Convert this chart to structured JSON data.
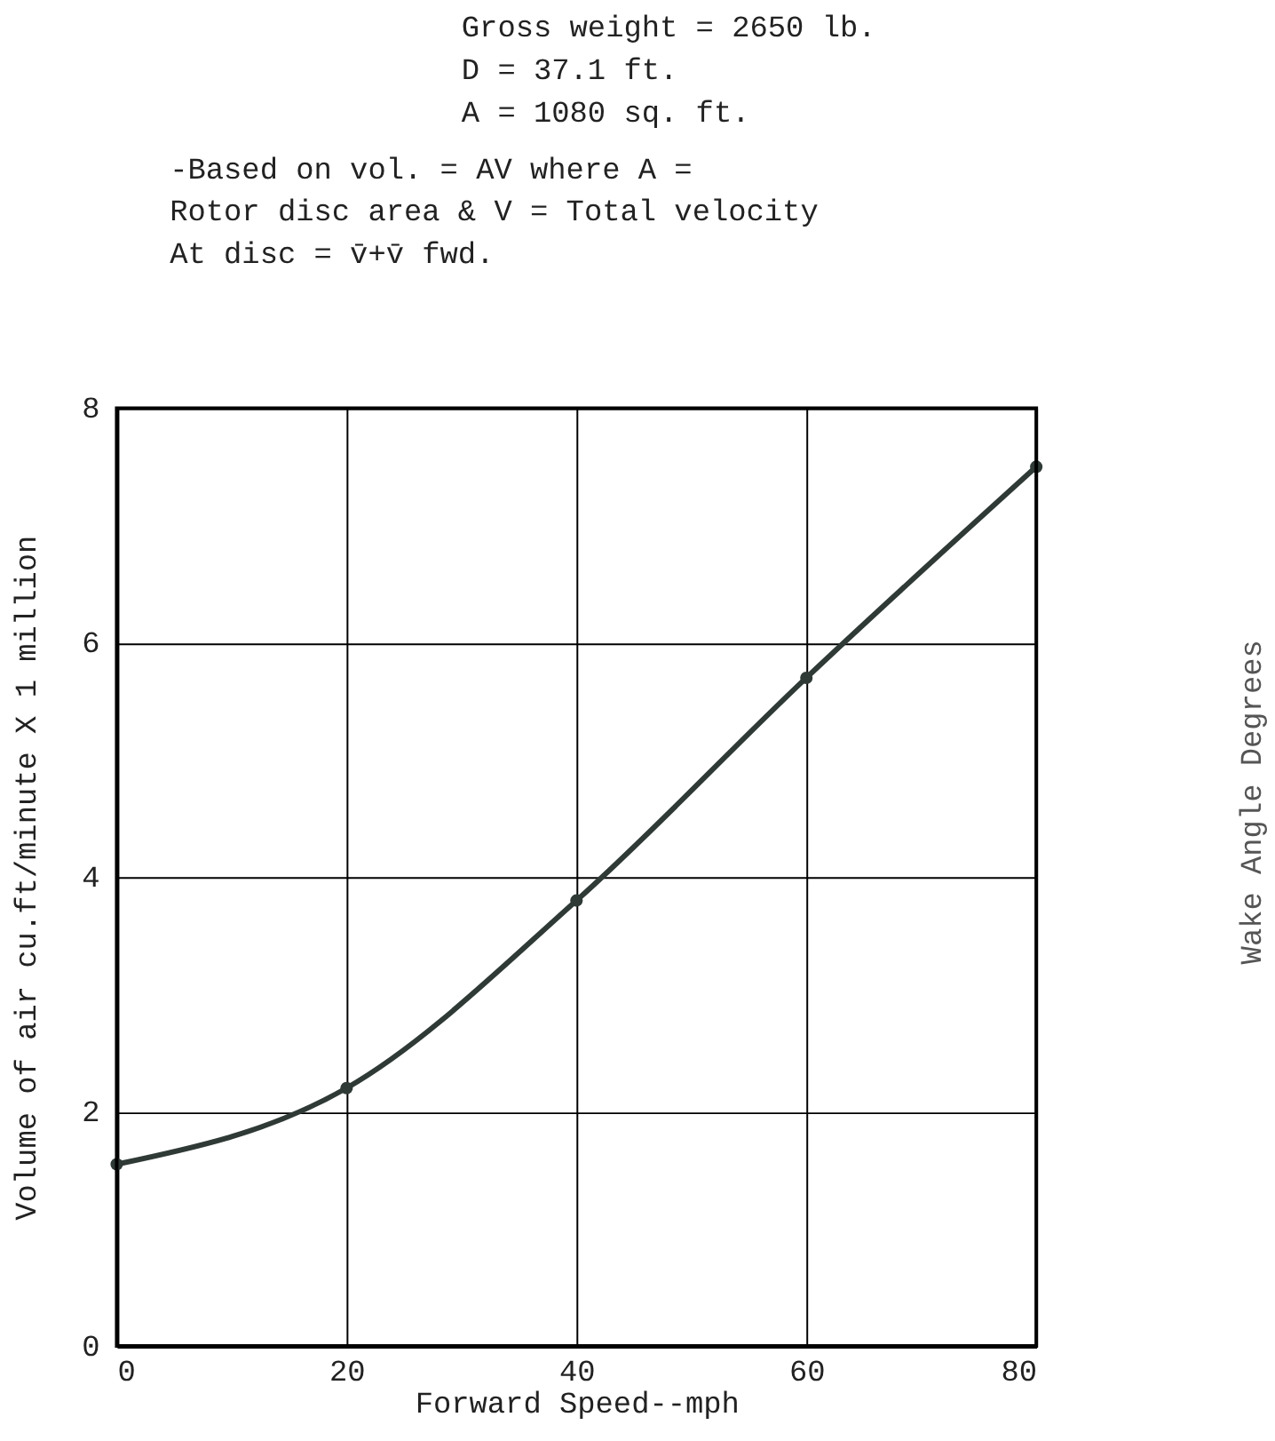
{
  "chart_data": {
    "type": "line",
    "xlabel": "Forward Speed--mph",
    "ylabel": "Volume of air  cu.ft/minute X 1 million",
    "annotations": [
      "Gross weight = 2650 lb.",
      "D = 37.1 ft.",
      "A = 1080 sq. ft.",
      "-Based on vol. = AV where A =",
      "Rotor disc area & V = Total velocity",
      "At disc = v̄+v̄ fwd.",
      "Wake Angle  Degrees"
    ],
    "x": [
      0,
      20,
      40,
      60,
      80
    ],
    "series": [
      {
        "color": "#2f3a36",
        "values": [
          1.55,
          2.2,
          3.8,
          5.7,
          7.5
        ]
      }
    ],
    "xlim": [
      0,
      80
    ],
    "xticks": [
      0,
      20,
      40,
      60,
      80
    ],
    "ylim": [
      0,
      8
    ],
    "yticks": [
      0,
      2,
      4,
      6,
      8
    ],
    "grid": true,
    "marker": "circle",
    "line_style": "solid"
  }
}
